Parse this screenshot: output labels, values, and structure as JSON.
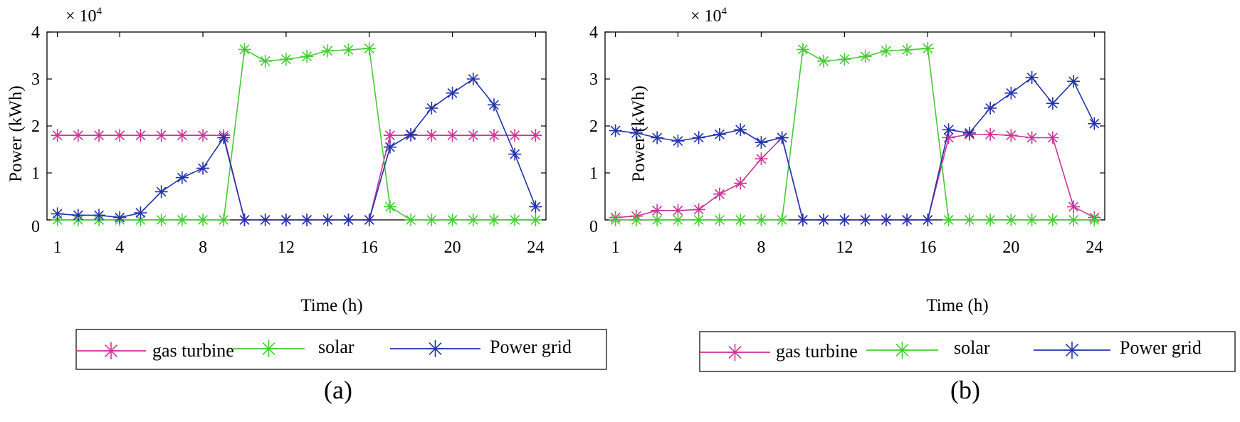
{
  "figure": {
    "panels": [
      "(a)",
      "(b)"
    ]
  },
  "legend": {
    "entries": [
      "gas turbine",
      "solar",
      "Power grid"
    ]
  },
  "colors": {
    "gas_turbine": "#cc3399",
    "solar": "#44cc33",
    "power_grid": "#2233aa",
    "axis": "#000000"
  },
  "chart_data": [
    {
      "type": "line",
      "panel_label": "(a)",
      "title": "",
      "xlabel": "Time (h)",
      "ylabel": "Power (kWh)",
      "y_multiplier": "× 10",
      "y_multiplier_exp": "4",
      "xlim": [
        0.5,
        24.5
      ],
      "ylim": [
        0,
        4
      ],
      "xticks": [
        1,
        4,
        8,
        12,
        16,
        20,
        24
      ],
      "yticks": [
        0,
        1,
        2,
        3,
        4
      ],
      "marker": "asterisk",
      "legend_position": "below",
      "x": [
        1,
        2,
        3,
        4,
        5,
        6,
        7,
        8,
        9,
        10,
        11,
        12,
        13,
        14,
        15,
        16,
        17,
        18,
        19,
        20,
        21,
        22,
        23,
        24
      ],
      "series": [
        {
          "name": "gas turbine",
          "color": "#cc3399",
          "values": [
            1.8,
            1.8,
            1.8,
            1.8,
            1.8,
            1.8,
            1.8,
            1.8,
            1.8,
            0,
            0,
            0,
            0,
            0,
            0,
            0,
            1.8,
            1.8,
            1.8,
            1.8,
            1.8,
            1.8,
            1.8,
            1.8
          ]
        },
        {
          "name": "solar",
          "color": "#44cc33",
          "values": [
            0,
            0,
            0,
            0,
            0,
            0,
            0,
            0,
            0,
            3.63,
            3.38,
            3.42,
            3.48,
            3.6,
            3.62,
            3.65,
            0.28,
            0,
            0,
            0,
            0,
            0,
            0,
            0
          ]
        },
        {
          "name": "Power grid",
          "color": "#2233aa",
          "values": [
            0.13,
            0.1,
            0.1,
            0.05,
            0.15,
            0.6,
            0.9,
            1.1,
            1.75,
            0,
            0,
            0,
            0,
            0,
            0,
            0,
            1.55,
            1.82,
            2.38,
            2.7,
            3.0,
            2.45,
            1.4,
            0.28
          ]
        }
      ]
    },
    {
      "type": "line",
      "panel_label": "(b)",
      "title": "",
      "xlabel": "Time (h)",
      "ylabel": "Power (kWh)",
      "y_multiplier": "× 10",
      "y_multiplier_exp": "4",
      "xlim": [
        0.5,
        24.5
      ],
      "ylim": [
        0,
        4
      ],
      "xticks": [
        1,
        4,
        8,
        12,
        16,
        20,
        24
      ],
      "yticks": [
        0,
        1,
        2,
        3,
        4
      ],
      "marker": "asterisk",
      "legend_position": "below",
      "x": [
        1,
        2,
        3,
        4,
        5,
        6,
        7,
        8,
        9,
        10,
        11,
        12,
        13,
        14,
        15,
        16,
        17,
        18,
        19,
        20,
        21,
        22,
        23,
        24
      ],
      "series": [
        {
          "name": "gas turbine",
          "color": "#cc3399",
          "values": [
            0.05,
            0.08,
            0.2,
            0.2,
            0.22,
            0.55,
            0.78,
            1.3,
            1.75,
            0,
            0,
            0,
            0,
            0,
            0,
            0,
            1.75,
            1.82,
            1.82,
            1.8,
            1.75,
            1.75,
            0.28,
            0.05
          ]
        },
        {
          "name": "solar",
          "color": "#44cc33",
          "values": [
            0,
            0,
            0,
            0,
            0,
            0,
            0,
            0,
            0,
            3.63,
            3.38,
            3.42,
            3.48,
            3.6,
            3.62,
            3.65,
            0,
            0,
            0,
            0,
            0,
            0,
            0,
            0
          ]
        },
        {
          "name": "Power grid",
          "color": "#2233aa",
          "values": [
            1.9,
            1.85,
            1.75,
            1.68,
            1.75,
            1.82,
            1.92,
            1.65,
            1.75,
            0,
            0,
            0,
            0,
            0,
            0,
            0,
            1.92,
            1.85,
            2.38,
            2.7,
            3.03,
            2.48,
            2.95,
            2.05
          ]
        }
      ]
    }
  ]
}
